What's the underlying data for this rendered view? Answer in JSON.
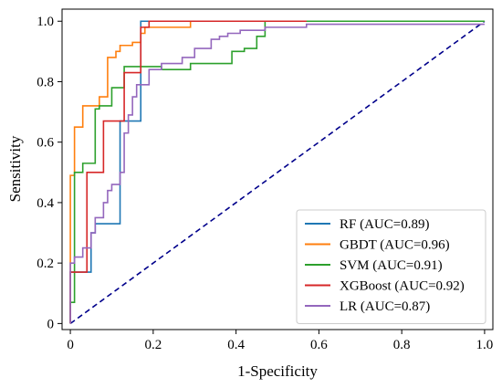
{
  "chart_data": {
    "type": "line",
    "xlabel": "1-Specificity",
    "ylabel": "Sensitivity",
    "xlim": [
      -0.02,
      1.02
    ],
    "ylim": [
      -0.02,
      1.04
    ],
    "xticks": [
      0,
      0.2,
      0.4,
      0.6,
      0.8,
      1.0
    ],
    "xtick_labels": [
      "0",
      "0.2",
      "0.4",
      "0.6",
      "0.8",
      "1.0"
    ],
    "yticks": [
      0,
      0.2,
      0.4,
      0.6,
      0.8,
      1.0
    ],
    "ytick_labels": [
      "0",
      "0.2",
      "0.4",
      "0.6",
      "0.8",
      "1.0"
    ],
    "grid": false,
    "legend_position": "bottom-right",
    "reference_line": {
      "x": [
        0,
        1
      ],
      "y": [
        0,
        1
      ],
      "color": "#00008b",
      "style": "dashed"
    },
    "series": [
      {
        "name": "RF (AUC=0.89)",
        "color": "#1f77b4",
        "x": [
          0,
          0,
          0.05,
          0.05,
          0.06,
          0.06,
          0.12,
          0.12,
          0.17,
          0.17,
          1.0
        ],
        "y": [
          0,
          0.17,
          0.17,
          0.3,
          0.3,
          0.33,
          0.33,
          0.67,
          0.67,
          1.0,
          1.0
        ]
      },
      {
        "name": "GBDT (AUC=0.96)",
        "color": "#ff7f0e",
        "x": [
          0,
          0,
          0.01,
          0.01,
          0.03,
          0.03,
          0.07,
          0.07,
          0.09,
          0.09,
          0.11,
          0.11,
          0.12,
          0.12,
          0.15,
          0.15,
          0.17,
          0.17,
          0.18,
          0.18,
          0.29,
          0.29,
          1.0
        ],
        "y": [
          0,
          0.49,
          0.49,
          0.65,
          0.65,
          0.72,
          0.72,
          0.75,
          0.75,
          0.88,
          0.88,
          0.9,
          0.9,
          0.92,
          0.92,
          0.93,
          0.93,
          0.96,
          0.96,
          0.98,
          0.98,
          1.0,
          1.0
        ]
      },
      {
        "name": "SVM (AUC=0.91)",
        "color": "#2ca02c",
        "x": [
          0,
          0,
          0.01,
          0.01,
          0.03,
          0.03,
          0.06,
          0.06,
          0.07,
          0.07,
          0.1,
          0.1,
          0.13,
          0.13,
          0.22,
          0.22,
          0.29,
          0.29,
          0.39,
          0.39,
          0.42,
          0.42,
          0.45,
          0.45,
          0.47,
          0.47,
          1.0
        ],
        "y": [
          0,
          0.07,
          0.07,
          0.5,
          0.5,
          0.53,
          0.53,
          0.71,
          0.71,
          0.72,
          0.72,
          0.78,
          0.78,
          0.85,
          0.85,
          0.84,
          0.84,
          0.86,
          0.86,
          0.9,
          0.9,
          0.91,
          0.91,
          0.95,
          0.95,
          1.0,
          1.0
        ]
      },
      {
        "name": "XGBoost (AUC=0.92)",
        "color": "#d62728",
        "x": [
          0,
          0,
          0.04,
          0.04,
          0.08,
          0.08,
          0.13,
          0.13,
          0.17,
          0.17,
          0.19,
          0.19,
          0.57
        ],
        "y": [
          0,
          0.17,
          0.17,
          0.5,
          0.5,
          0.67,
          0.67,
          0.83,
          0.83,
          0.98,
          0.98,
          1.0,
          1.0
        ]
      },
      {
        "name": "LR (AUC=0.87)",
        "color": "#9467bd",
        "x": [
          0,
          0,
          0.01,
          0.01,
          0.03,
          0.03,
          0.05,
          0.05,
          0.06,
          0.06,
          0.08,
          0.08,
          0.09,
          0.09,
          0.1,
          0.1,
          0.12,
          0.12,
          0.13,
          0.13,
          0.14,
          0.14,
          0.15,
          0.15,
          0.16,
          0.16,
          0.19,
          0.19,
          0.22,
          0.22,
          0.27,
          0.27,
          0.3,
          0.3,
          0.34,
          0.34,
          0.36,
          0.36,
          0.38,
          0.38,
          0.41,
          0.41,
          0.47,
          0.47,
          0.57,
          0.57,
          1.0
        ],
        "y": [
          0,
          0.2,
          0.2,
          0.22,
          0.22,
          0.25,
          0.25,
          0.3,
          0.3,
          0.35,
          0.35,
          0.4,
          0.4,
          0.44,
          0.44,
          0.46,
          0.46,
          0.5,
          0.5,
          0.63,
          0.63,
          0.69,
          0.69,
          0.75,
          0.75,
          0.79,
          0.79,
          0.84,
          0.84,
          0.86,
          0.86,
          0.88,
          0.88,
          0.91,
          0.91,
          0.94,
          0.94,
          0.95,
          0.95,
          0.96,
          0.96,
          0.97,
          0.97,
          0.98,
          0.98,
          0.99,
          0.99
        ]
      }
    ]
  }
}
